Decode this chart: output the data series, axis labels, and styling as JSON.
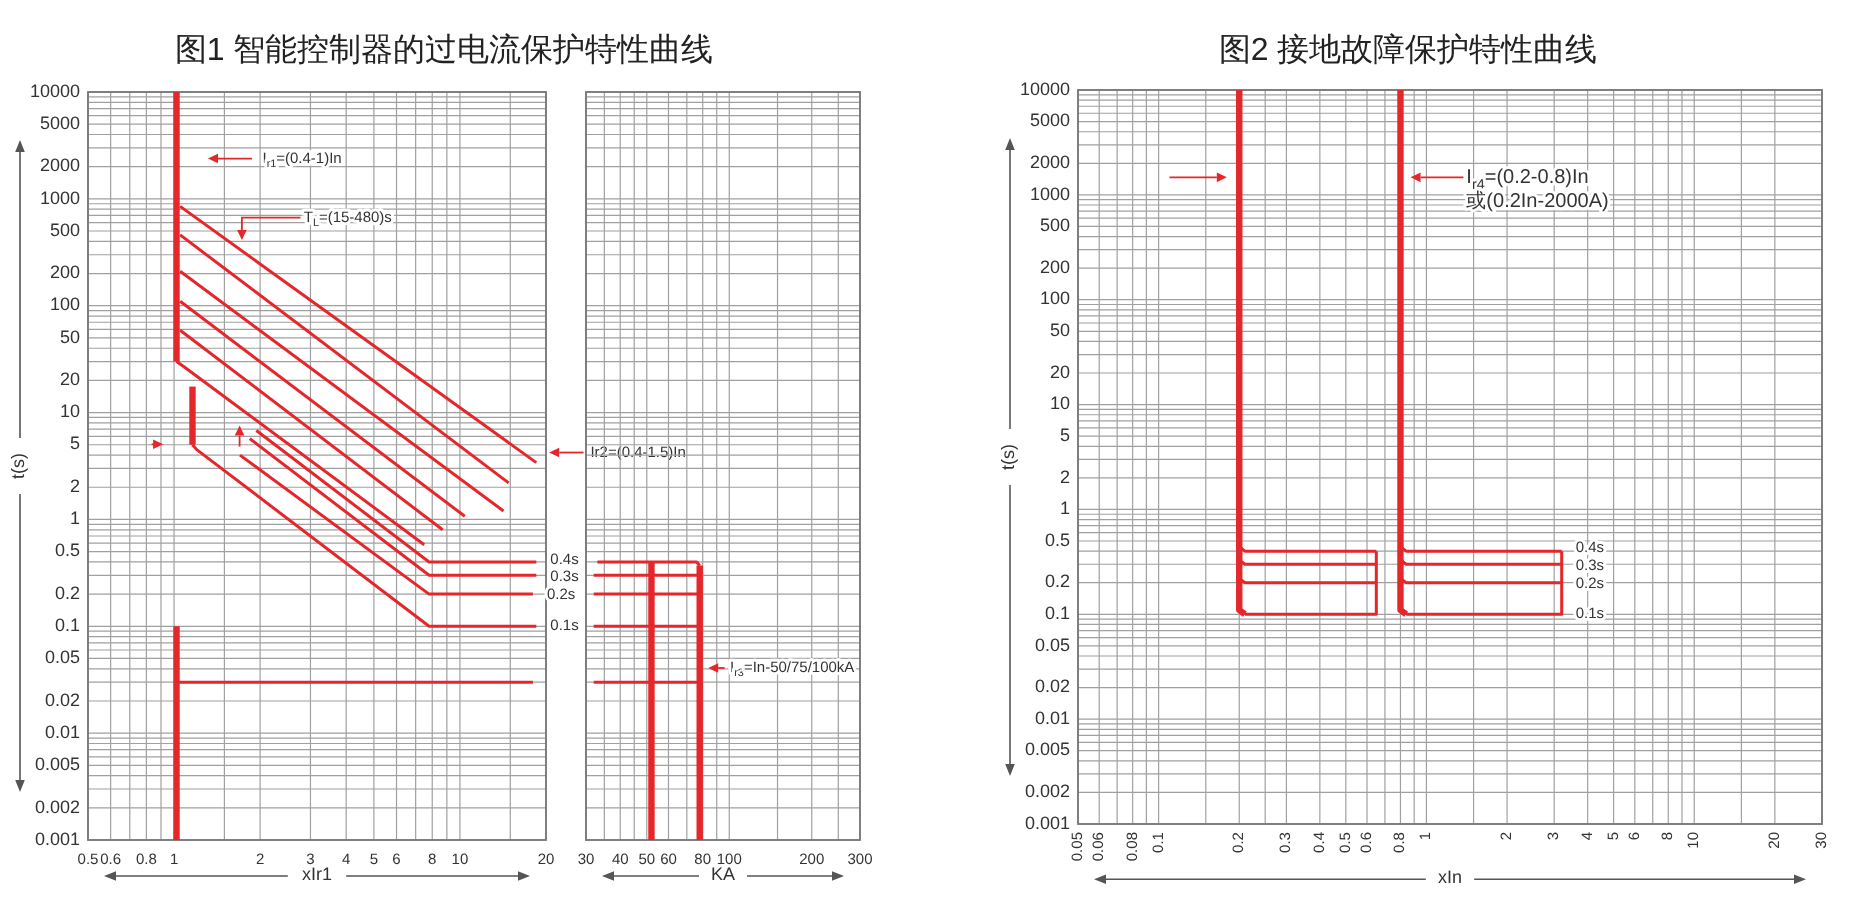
{
  "chart_data": [
    {
      "type": "line",
      "title": "图1 智能控制器的过电流保护特性曲线",
      "xlabel": "xIr1",
      "ylabel": "t(s)",
      "log": "xy",
      "xlim": [
        0.5,
        20
      ],
      "ylim": [
        0.001,
        10000
      ],
      "xticks": [
        0.5,
        0.6,
        {
          "value": 0.7,
          "label": null
        },
        0.8,
        {
          "value": 0.9,
          "label": null
        },
        1,
        {
          "value": 1.5,
          "label": null
        },
        2,
        3,
        4,
        5,
        6,
        {
          "value": 7,
          "label": null
        },
        8,
        {
          "value": 9,
          "label": null
        },
        10,
        {
          "value": 15,
          "label": null
        },
        20
      ],
      "yticks": [
        0.001,
        0.002,
        {
          "value": 0.003,
          "label": null
        },
        {
          "value": 0.004,
          "label": null
        },
        0.005,
        {
          "value": 0.006,
          "label": null
        },
        {
          "value": 0.007,
          "label": null
        },
        {
          "value": 0.008,
          "label": null
        },
        {
          "value": 0.009,
          "label": null
        },
        0.01,
        0.02,
        {
          "value": 0.03,
          "label": null
        },
        {
          "value": 0.04,
          "label": null
        },
        0.05,
        {
          "value": 0.06,
          "label": null
        },
        {
          "value": 0.07,
          "label": null
        },
        {
          "value": 0.08,
          "label": null
        },
        {
          "value": 0.09,
          "label": null
        },
        0.1,
        0.2,
        {
          "value": 0.3,
          "label": null
        },
        {
          "value": 0.4,
          "label": null
        },
        0.5,
        {
          "value": 0.6,
          "label": null
        },
        {
          "value": 0.7,
          "label": null
        },
        {
          "value": 0.8,
          "label": null
        },
        {
          "value": 0.9,
          "label": null
        },
        1,
        2,
        {
          "value": 3,
          "label": null
        },
        {
          "value": 4,
          "label": null
        },
        5,
        {
          "value": 6,
          "label": null
        },
        {
          "value": 7,
          "label": null
        },
        {
          "value": 8,
          "label": null
        },
        {
          "value": 9,
          "label": null
        },
        10,
        20,
        {
          "value": 30,
          "label": null
        },
        {
          "value": 40,
          "label": null
        },
        50,
        {
          "value": 60,
          "label": null
        },
        {
          "value": 70,
          "label": null
        },
        {
          "value": 80,
          "label": null
        },
        {
          "value": 90,
          "label": null
        },
        100,
        200,
        {
          "value": 300,
          "label": null
        },
        {
          "value": 400,
          "label": null
        },
        500,
        {
          "value": 600,
          "label": null
        },
        {
          "value": 700,
          "label": null
        },
        {
          "value": 800,
          "label": null
        },
        {
          "value": 900,
          "label": null
        },
        1000,
        2000,
        {
          "value": 3000,
          "label": null
        },
        {
          "value": 4000,
          "label": null
        },
        5000,
        {
          "value": 6000,
          "label": null
        },
        {
          "value": 7000,
          "label": null
        },
        {
          "value": 8000,
          "label": null
        },
        {
          "value": 9000,
          "label": null
        },
        10000
      ],
      "grid": true,
      "series": [
        {
          "color": "#e5262a",
          "x": [
            1.02,
            1.02
          ],
          "values": [
            10000,
            30
          ]
        },
        {
          "color": "#e5262a",
          "x": [
            1.05,
            18.5
          ],
          "values": [
            850,
            3.4
          ]
        },
        {
          "color": "#e5262a",
          "x": [
            1.05,
            14.8
          ],
          "values": [
            460,
            2.2
          ]
        },
        {
          "color": "#e5262a",
          "x": [
            1.05,
            14.2
          ],
          "values": [
            210,
            1.2
          ]
        },
        {
          "color": "#e5262a",
          "x": [
            1.05,
            10.4
          ],
          "values": [
            110,
            1.07
          ]
        },
        {
          "color": "#e5262a",
          "x": [
            1.05,
            8.7
          ],
          "values": [
            59,
            0.8
          ]
        },
        {
          "color": "#e5262a",
          "x": [
            1.02,
            1.08,
            7.5
          ],
          "values": [
            30,
            27,
            0.58
          ]
        },
        {
          "color": "#e5262a",
          "x": [
            1.16,
            1.16
          ],
          "values": [
            17.5,
            5
          ]
        },
        {
          "color": "#e5262a",
          "x": [
            1.16,
            1.2,
            7.8,
            18.5
          ],
          "values": [
            5,
            4.5,
            0.1,
            0.1
          ]
        },
        {
          "color": "#e5262a",
          "x": [
            1.7,
            7.8,
            18
          ],
          "values": [
            4,
            0.2,
            0.2
          ]
        },
        {
          "color": "#e5262a",
          "x": [
            1.84,
            7.8,
            18.5
          ],
          "values": [
            5.7,
            0.3,
            0.3
          ]
        },
        {
          "color": "#e5262a",
          "x": [
            1.94,
            7.8,
            18.5
          ],
          "values": [
            6.8,
            0.4,
            0.4
          ]
        },
        {
          "color": "#e5262a",
          "x": [
            1.02,
            1.02
          ],
          "values": [
            0.1,
            0.001
          ]
        },
        {
          "color": "#e5262a",
          "x": [
            1.02,
            18
          ],
          "values": [
            0.03,
            0.03
          ]
        }
      ],
      "annotations": [
        "I$_{r1}$=(0.4-1)In",
        "T$_{L}$=(15-480)s",
        "Ir2=(0.4-1.5)In",
        {
          "text": "0.4s",
          "x": 18.5,
          "y": 0.4
        },
        {
          "text": "0.3s",
          "x": 18.5,
          "y": 0.3
        },
        {
          "text": "0.2s",
          "x": 18,
          "y": 0.2
        },
        {
          "text": "0.1s",
          "x": 18.5,
          "y": 0.1
        }
      ]
    },
    {
      "type": "line",
      "xlabel": "KA",
      "log": "xy",
      "xlim": [
        30,
        300
      ],
      "ylim": [
        0.001,
        10000
      ],
      "xticks": [
        30,
        {
          "value": 35,
          "label": null
        },
        40,
        {
          "value": 45,
          "label": null
        },
        50,
        60,
        {
          "value": 70,
          "label": null
        },
        80,
        {
          "value": 90,
          "label": null
        },
        100,
        {
          "value": 150,
          "label": null
        },
        200,
        {
          "value": 250,
          "label": null
        },
        300
      ],
      "yticks": [
        0.001,
        0.002,
        {
          "value": 0.003,
          "label": null
        },
        {
          "value": 0.004,
          "label": null
        },
        0.005,
        {
          "value": 0.006,
          "label": null
        },
        {
          "value": 0.007,
          "label": null
        },
        {
          "value": 0.008,
          "label": null
        },
        {
          "value": 0.009,
          "label": null
        },
        0.01,
        0.02,
        {
          "value": 0.03,
          "label": null
        },
        {
          "value": 0.04,
          "label": null
        },
        0.05,
        {
          "value": 0.06,
          "label": null
        },
        {
          "value": 0.07,
          "label": null
        },
        {
          "value": 0.08,
          "label": null
        },
        {
          "value": 0.09,
          "label": null
        },
        0.1,
        0.2,
        {
          "value": 0.3,
          "label": null
        },
        {
          "value": 0.4,
          "label": null
        },
        0.5,
        {
          "value": 0.6,
          "label": null
        },
        {
          "value": 0.7,
          "label": null
        },
        {
          "value": 0.8,
          "label": null
        },
        {
          "value": 0.9,
          "label": null
        },
        1,
        2,
        {
          "value": 3,
          "label": null
        },
        {
          "value": 4,
          "label": null
        },
        5,
        {
          "value": 6,
          "label": null
        },
        {
          "value": 7,
          "label": null
        },
        {
          "value": 8,
          "label": null
        },
        {
          "value": 9,
          "label": null
        },
        10,
        20,
        {
          "value": 30,
          "label": null
        },
        {
          "value": 40,
          "label": null
        },
        50,
        {
          "value": 60,
          "label": null
        },
        {
          "value": 70,
          "label": null
        },
        {
          "value": 80,
          "label": null
        },
        {
          "value": 90,
          "label": null
        },
        100,
        200,
        {
          "value": 300,
          "label": null
        },
        {
          "value": 400,
          "label": null
        },
        500,
        {
          "value": 600,
          "label": null
        },
        {
          "value": 700,
          "label": null
        },
        {
          "value": 800,
          "label": null
        },
        {
          "value": 900,
          "label": null
        },
        1000,
        2000,
        {
          "value": 3000,
          "label": null
        },
        {
          "value": 4000,
          "label": null
        },
        5000,
        {
          "value": 6000,
          "label": null
        },
        {
          "value": 7000,
          "label": null
        },
        {
          "value": 8000,
          "label": null
        },
        {
          "value": 9000,
          "label": null
        },
        10000
      ],
      "tick_labels": "x",
      "grid": true,
      "series": [
        {
          "color": "#e5262a",
          "x": [
            52,
            52
          ],
          "values": [
            0.4,
            0.001
          ]
        },
        {
          "color": "#e5262a",
          "x": [
            78,
            78
          ],
          "values": [
            0.37,
            0.001
          ]
        },
        {
          "color": "#e5262a",
          "x": [
            33,
            76,
            78
          ],
          "values": [
            0.4,
            0.4,
            0.37
          ]
        },
        {
          "color": "#e5262a",
          "x": [
            32,
            78
          ],
          "values": [
            0.3,
            0.3
          ]
        },
        {
          "color": "#e5262a",
          "x": [
            32,
            78
          ],
          "values": [
            0.2,
            0.2
          ]
        },
        {
          "color": "#e5262a",
          "x": [
            32,
            78
          ],
          "values": [
            0.1,
            0.1
          ]
        },
        {
          "color": "#e5262a",
          "x": [
            32,
            78
          ],
          "values": [
            0.03,
            0.03
          ]
        }
      ],
      "annotations": [
        "I$_{r3}$=In-50/75/100kA"
      ]
    },
    {
      "type": "line",
      "title": "图2 接地故障保护特性曲线",
      "xlabel": "xIn",
      "ylabel": "t(s)",
      "log": "xy",
      "xlim": [
        0.05,
        30
      ],
      "ylim": [
        0.001,
        10000
      ],
      "xticks": [
        0.05,
        0.06,
        {
          "value": 0.07,
          "label": null
        },
        0.08,
        {
          "value": 0.09,
          "label": null
        },
        0.1,
        {
          "value": 0.15,
          "label": null
        },
        0.2,
        {
          "value": 0.25,
          "label": null
        },
        0.3,
        0.4,
        0.5,
        0.6,
        {
          "value": 0.7,
          "label": null
        },
        0.8,
        {
          "value": 0.9,
          "label": null
        },
        1,
        {
          "value": 1.5,
          "label": null
        },
        2,
        3,
        4,
        5,
        6,
        {
          "value": 7,
          "label": null
        },
        8,
        {
          "value": 9,
          "label": null
        },
        10,
        {
          "value": 15,
          "label": null
        },
        20,
        30
      ],
      "yticks": [
        0.001,
        0.002,
        {
          "value": 0.003,
          "label": null
        },
        {
          "value": 0.004,
          "label": null
        },
        0.005,
        {
          "value": 0.006,
          "label": null
        },
        {
          "value": 0.007,
          "label": null
        },
        {
          "value": 0.008,
          "label": null
        },
        {
          "value": 0.009,
          "label": null
        },
        0.01,
        0.02,
        {
          "value": 0.03,
          "label": null
        },
        {
          "value": 0.04,
          "label": null
        },
        0.05,
        {
          "value": 0.06,
          "label": null
        },
        {
          "value": 0.07,
          "label": null
        },
        {
          "value": 0.08,
          "label": null
        },
        {
          "value": 0.09,
          "label": null
        },
        0.1,
        0.2,
        {
          "value": 0.3,
          "label": null
        },
        {
          "value": 0.4,
          "label": null
        },
        0.5,
        {
          "value": 0.6,
          "label": null
        },
        {
          "value": 0.7,
          "label": null
        },
        {
          "value": 0.8,
          "label": null
        },
        {
          "value": 0.9,
          "label": null
        },
        1,
        2,
        {
          "value": 3,
          "label": null
        },
        {
          "value": 4,
          "label": null
        },
        5,
        {
          "value": 6,
          "label": null
        },
        {
          "value": 7,
          "label": null
        },
        {
          "value": 8,
          "label": null
        },
        {
          "value": 9,
          "label": null
        },
        10,
        20,
        {
          "value": 30,
          "label": null
        },
        {
          "value": 40,
          "label": null
        },
        50,
        {
          "value": 60,
          "label": null
        },
        {
          "value": 70,
          "label": null
        },
        {
          "value": 80,
          "label": null
        },
        {
          "value": 90,
          "label": null
        },
        100,
        200,
        {
          "value": 300,
          "label": null
        },
        {
          "value": 400,
          "label": null
        },
        500,
        {
          "value": 600,
          "label": null
        },
        {
          "value": 700,
          "label": null
        },
        {
          "value": 800,
          "label": null
        },
        {
          "value": 900,
          "label": null
        },
        1000,
        2000,
        {
          "value": 3000,
          "label": null
        },
        {
          "value": 4000,
          "label": null
        },
        5000,
        {
          "value": 6000,
          "label": null
        },
        {
          "value": 7000,
          "label": null
        },
        {
          "value": 8000,
          "label": null
        },
        {
          "value": 9000,
          "label": null
        },
        10000
      ],
      "grid": true,
      "series": [
        {
          "color": "#e5262a",
          "x": [
            0.21,
            0.65,
            0.65
          ],
          "values": [
            0.1,
            0.1,
            0.4
          ]
        },
        {
          "color": "#e5262a",
          "x": [
            0.2,
            0.21,
            0.65
          ],
          "values": [
            0.22,
            0.2,
            0.2
          ]
        },
        {
          "color": "#e5262a",
          "x": [
            0.2,
            0.21,
            0.65
          ],
          "values": [
            0.33,
            0.3,
            0.3
          ]
        },
        {
          "color": "#e5262a",
          "x": [
            0.2,
            0.21,
            0.65
          ],
          "values": [
            0.44,
            0.4,
            0.4
          ]
        },
        {
          "color": "#e5262a",
          "x": [
            0.84,
            3.2,
            3.2
          ],
          "values": [
            0.1,
            0.1,
            0.4
          ]
        },
        {
          "color": "#e5262a",
          "x": [
            0.8,
            0.84,
            3.2
          ],
          "values": [
            0.22,
            0.2,
            0.2
          ]
        },
        {
          "color": "#e5262a",
          "x": [
            0.8,
            0.84,
            3.2
          ],
          "values": [
            0.33,
            0.3,
            0.3
          ]
        },
        {
          "color": "#e5262a",
          "x": [
            0.8,
            0.84,
            3.2
          ],
          "values": [
            0.44,
            0.4,
            0.4
          ]
        },
        {
          "color": "#e5262a",
          "x": [
            0.2,
            0.2,
            0.21
          ],
          "values": [
            10000,
            0.11,
            0.1
          ]
        },
        {
          "color": "#e5262a",
          "x": [
            0.8,
            0.8,
            0.84
          ],
          "values": [
            10000,
            0.11,
            0.1
          ]
        }
      ],
      "annotations": [
        "I$_{r4}$=(0.2-0.8)In\n或(0.2In-2000A)",
        {
          "text": "0.4s",
          "x": 3.2,
          "y": 0.4
        },
        {
          "text": "0.3s",
          "x": 3.2,
          "y": 0.3
        },
        {
          "text": "0.2s",
          "x": 3.2,
          "y": 0.2
        },
        {
          "text": "0.1s",
          "x": 3.2,
          "y": 0.1
        }
      ]
    }
  ]
}
